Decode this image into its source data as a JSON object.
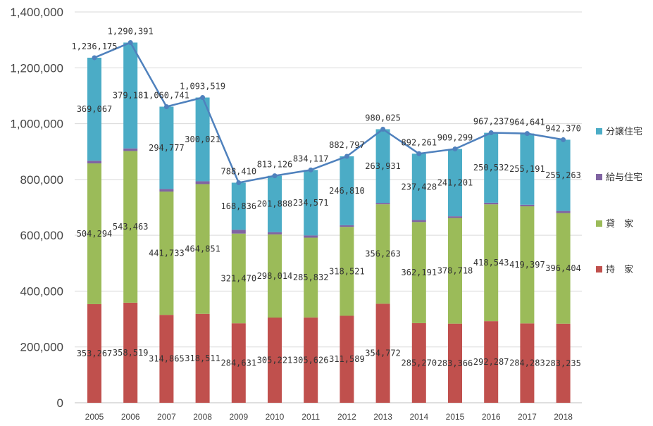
{
  "chart_data": {
    "type": "bar",
    "stacked": true,
    "categories": [
      "2005",
      "2006",
      "2007",
      "2008",
      "2009",
      "2010",
      "2011",
      "2012",
      "2013",
      "2014",
      "2015",
      "2016",
      "2017",
      "2018"
    ],
    "series": [
      {
        "name": "持　家",
        "color": "#c0504d",
        "values": [
          353267,
          358519,
          314865,
          318511,
          284631,
          305221,
          305626,
          311589,
          354772,
          285270,
          283366,
          292287,
          284283,
          283235
        ],
        "labels": [
          "353,267",
          "358,519",
          "314,865",
          "318,511",
          "284,631",
          "305,221",
          "305,626",
          "311,589",
          "354,772",
          "285,270",
          "283,366",
          "292,287",
          "284,283",
          "283,235"
        ]
      },
      {
        "name": "貸　家",
        "color": "#9bbb59",
        "values": [
          504294,
          543463,
          441733,
          464851,
          321470,
          298014,
          285832,
          318521,
          356263,
          362191,
          378718,
          418543,
          419397,
          396404
        ],
        "labels": [
          "504,294",
          "543,463",
          "441,733",
          "464,851",
          "321,470",
          "298,014",
          "285,832",
          "318,521",
          "356,263",
          "362,191",
          "378,718",
          "418,543",
          "419,397",
          "396,404"
        ]
      },
      {
        "name": "給与住宅",
        "color": "#8064a2",
        "values": [
          9547,
          9228,
          9366,
          10136,
          13473,
          8003,
          8088,
          5877,
          5059,
          7372,
          6014,
          5875,
          5770,
          7468
        ]
      },
      {
        "name": "分譲住宅",
        "color": "#4bacc6",
        "values": [
          369067,
          379181,
          294777,
          300021,
          168836,
          201888,
          234571,
          246810,
          263931,
          237428,
          241201,
          250532,
          255191,
          255263
        ],
        "labels": [
          "369,067",
          "379,181",
          "294,777",
          "300,021",
          "168,836",
          "201,888",
          "234,571",
          "246,810",
          "263,931",
          "237,428",
          "241,201",
          "250,532",
          "255,191",
          "255,263"
        ]
      }
    ],
    "total": {
      "type": "line",
      "color": "#4f81bd",
      "values": [
        1236175,
        1290391,
        1060741,
        1093519,
        788410,
        813126,
        834117,
        882797,
        980025,
        892261,
        909299,
        967237,
        964641,
        942370
      ],
      "labels": [
        "1,236,175",
        "1,290,391",
        "1,060,741",
        "1,093,519",
        "788,410",
        "813,126",
        "834,117",
        "882,797",
        "980,025",
        "892,261",
        "909,299",
        "967,237",
        "964,641",
        "942,370"
      ]
    },
    "ylim": [
      0,
      1400000
    ],
    "yticks": [
      0,
      200000,
      400000,
      600000,
      800000,
      1000000,
      1200000,
      1400000
    ],
    "ytick_labels": [
      "0",
      "200,000",
      "400,000",
      "600,000",
      "800,000",
      "1,000,000",
      "1,200,000",
      "1,400,000"
    ],
    "grid": true,
    "legend_position": "right",
    "legend_order": [
      "分譲住宅",
      "給与住宅",
      "貸　家",
      "持　家"
    ],
    "title": "",
    "xlabel": "",
    "ylabel": ""
  }
}
